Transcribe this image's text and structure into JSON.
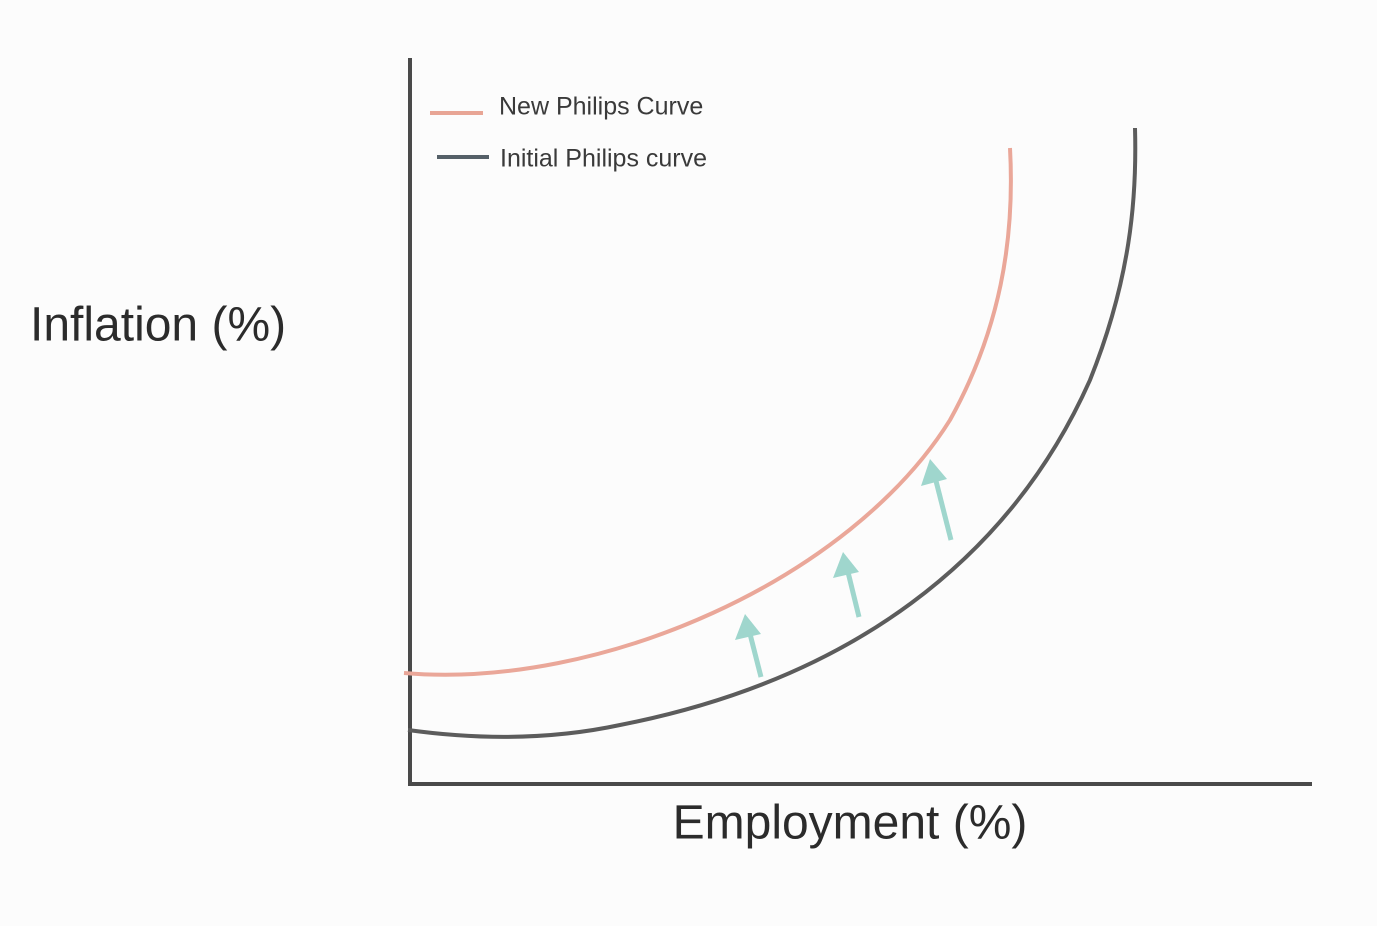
{
  "axes": {
    "y_label": "Inflation (%)",
    "x_label": "Employment (%)"
  },
  "legend": [
    {
      "label": "New Philips Curve"
    },
    {
      "label": "Initial Philips curve"
    }
  ]
}
